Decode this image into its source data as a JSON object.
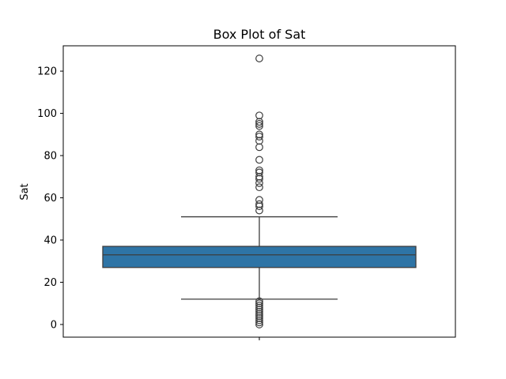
{
  "chart_data": {
    "type": "box",
    "title": "Box Plot of Sat",
    "ylabel": "Sat",
    "xlabel": "",
    "ylim": [
      -6,
      132
    ],
    "yticks": [
      0,
      20,
      40,
      60,
      80,
      100,
      120
    ],
    "grid": false,
    "box": {
      "color": "#2e74a6",
      "q1": 27,
      "median": 33,
      "q3": 37,
      "whisker_low": 12,
      "whisker_high": 51
    },
    "outliers_high": [
      54,
      56,
      57,
      59,
      65,
      67,
      69,
      70,
      72,
      73,
      78,
      84,
      87,
      89,
      90,
      94,
      95,
      96,
      99,
      126
    ],
    "outliers_low": [
      0,
      1,
      2,
      3,
      4,
      5,
      6,
      7,
      8,
      9,
      10,
      11
    ]
  }
}
